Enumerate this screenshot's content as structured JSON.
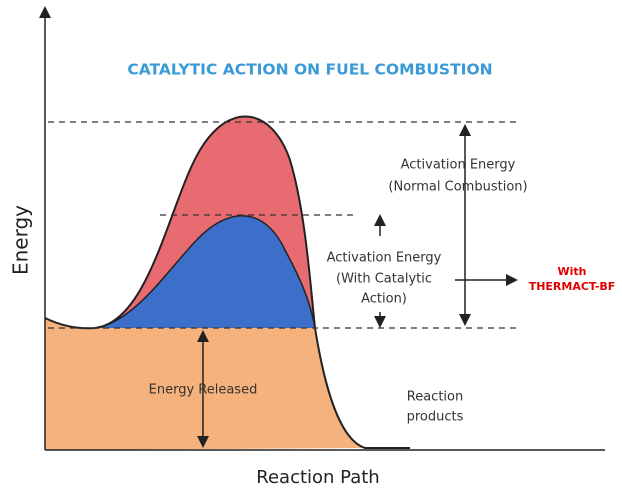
{
  "title": "CATALYTIC ACTION ON FUEL COMBUSTION",
  "axes": {
    "y_label": "Energy",
    "x_label": "Reaction Path"
  },
  "normal_activation": {
    "line1": "Activation Energy",
    "line2": "(Normal Combustion)"
  },
  "catalytic_activation": {
    "line1": "Activation Energy",
    "line2": "(With Catalytic",
    "line3": "Action)"
  },
  "product_note": {
    "line1": "With",
    "line2": "THERMACT-BF"
  },
  "energy_released": "Energy Released",
  "products": {
    "line1": "Reaction",
    "line2": "products"
  }
}
